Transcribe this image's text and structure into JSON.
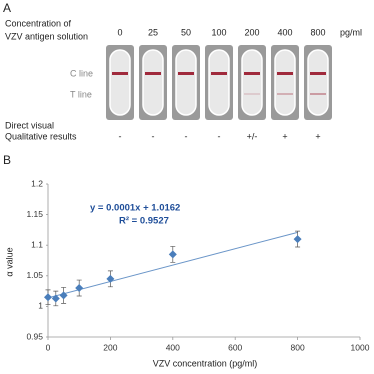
{
  "panel_a": {
    "label": "A",
    "header": [
      "Concentration of",
      "VZV antigen solution"
    ],
    "concentrations": [
      0,
      25,
      50,
      100,
      200,
      400,
      800
    ],
    "unit": "pg/ml",
    "c_line": "C line",
    "t_line": "T line",
    "results_label": [
      "Direct visual",
      "Qualitative results"
    ],
    "results": [
      "-",
      "-",
      "-",
      "-",
      "+/-",
      "+",
      "+"
    ]
  },
  "chart_data": {
    "type": "scatter",
    "panel_label": "B",
    "xlabel": "VZV concentration (pg/ml)",
    "ylabel": "α value",
    "annotations": [
      "y = 0.0001x + 1.0162",
      "R² = 0.9527"
    ],
    "x": [
      0,
      25,
      50,
      100,
      200,
      400,
      800
    ],
    "series": [
      {
        "name": "α value",
        "color": "#4a7ebb",
        "values": [
          1.015,
          1.013,
          1.018,
          1.03,
          1.045,
          1.085,
          1.11
        ],
        "errors": [
          0.012,
          0.012,
          0.013,
          0.013,
          0.013,
          0.013,
          0.013
        ]
      }
    ],
    "trendline": {
      "color": "#6a95c8",
      "x": [
        0,
        800
      ],
      "values": [
        1.014,
        1.121
      ]
    },
    "xlim": [
      0,
      1000
    ],
    "xticks": [
      0,
      200,
      400,
      600,
      800,
      1000
    ],
    "ylim": [
      0.95,
      1.2
    ],
    "yticks": [
      0.95,
      1,
      1.05,
      1.1,
      1.15,
      1.2
    ],
    "grid": false
  }
}
